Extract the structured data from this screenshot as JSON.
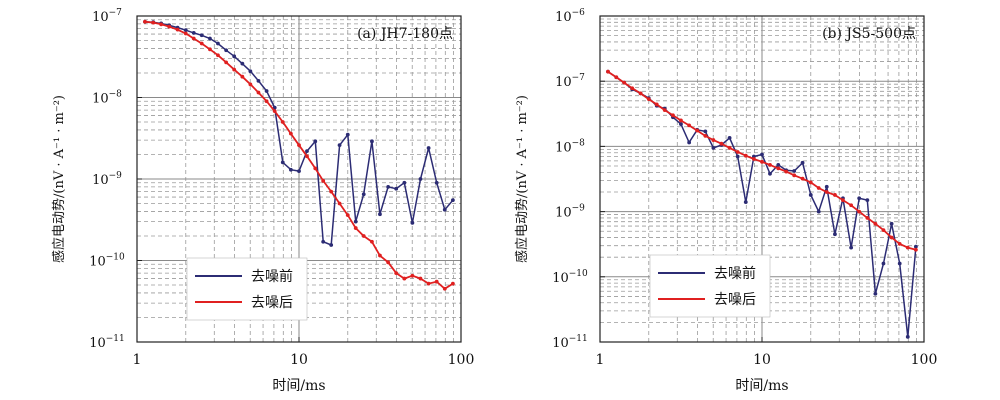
{
  "chart_data": [
    {
      "type": "line",
      "annotation": "(a) JH7-180点",
      "xlabel": "时间/ms",
      "ylabel": "感应电动势/(nV · A⁻¹ · m⁻²)",
      "xscale": "log",
      "yscale": "log",
      "xlim": [
        1,
        100
      ],
      "ylim": [
        1e-11,
        1e-07
      ],
      "x_ticks": [
        {
          "value": 1,
          "label": "1"
        },
        {
          "value": 10,
          "label": "10"
        },
        {
          "value": 100,
          "label": "100"
        }
      ],
      "y_ticks": [
        {
          "value": 1e-11,
          "base": "10",
          "exp": "−11"
        },
        {
          "value": 1e-10,
          "base": "10",
          "exp": "−10"
        },
        {
          "value": 1e-09,
          "base": "10",
          "exp": "−9"
        },
        {
          "value": 1e-08,
          "base": "10",
          "exp": "−8"
        },
        {
          "value": 1e-07,
          "base": "10",
          "exp": "−7"
        }
      ],
      "grid": true,
      "legend_position": "bottom-left",
      "series": [
        {
          "name": "去噪前",
          "color": "#2c2c74",
          "x": [
            1.12,
            1.26,
            1.41,
            1.58,
            1.78,
            2.0,
            2.24,
            2.51,
            2.82,
            3.16,
            3.55,
            3.98,
            4.47,
            5.01,
            5.62,
            6.31,
            7.08,
            7.94,
            8.91,
            10.0,
            11.2,
            12.6,
            14.1,
            15.8,
            17.8,
            20.0,
            22.4,
            25.1,
            28.2,
            31.6,
            35.5,
            39.8,
            44.7,
            50.1,
            56.2,
            63.1,
            70.8,
            79.4,
            89.1
          ],
          "y": [
            8.5e-08,
            8.4e-08,
            8.1e-08,
            7.7e-08,
            7.2e-08,
            6.7e-08,
            6.2e-08,
            5.8e-08,
            5.3e-08,
            4.6e-08,
            3.8e-08,
            3.2e-08,
            2.6e-08,
            2.1e-08,
            1.6e-08,
            1.2e-08,
            7.5e-09,
            1.6e-09,
            1.3e-09,
            1.25e-09,
            2.2e-09,
            2.9e-09,
            1.7e-10,
            1.55e-10,
            2.6e-09,
            3.5e-09,
            3e-10,
            6.5e-10,
            2.9e-09,
            3.7e-10,
            8e-10,
            7.6e-10,
            9e-10,
            2.9e-10,
            1e-09,
            2.4e-09,
            9e-10,
            4.2e-10,
            5.5e-10
          ]
        },
        {
          "name": "去噪后",
          "color": "#e02020",
          "x": [
            1.12,
            1.26,
            1.41,
            1.58,
            1.78,
            2.0,
            2.24,
            2.51,
            2.82,
            3.16,
            3.55,
            3.98,
            4.47,
            5.01,
            5.62,
            6.31,
            7.08,
            7.94,
            8.91,
            10.0,
            11.2,
            12.6,
            14.1,
            15.8,
            17.8,
            20.0,
            22.4,
            25.1,
            28.2,
            31.6,
            35.5,
            39.8,
            44.7,
            50.1,
            56.2,
            63.1,
            70.8,
            79.4,
            89.1
          ],
          "y": [
            8.5e-08,
            8.3e-08,
            7.9e-08,
            7.4e-08,
            6.8e-08,
            6.1e-08,
            5.3e-08,
            4.6e-08,
            3.9e-08,
            3.3e-08,
            2.7e-08,
            2.2e-08,
            1.8e-08,
            1.45e-08,
            1.15e-08,
            9e-09,
            6.8e-09,
            5e-09,
            3.6e-09,
            2.6e-09,
            1.9e-09,
            1.35e-09,
            9.5e-10,
            7e-10,
            5e-10,
            3.6e-10,
            2.5e-10,
            2e-10,
            1.7e-10,
            1.15e-10,
            9.5e-11,
            7e-11,
            6e-11,
            6.5e-11,
            6e-11,
            5.2e-11,
            5.5e-11,
            4.5e-11,
            5.2e-11
          ]
        }
      ]
    },
    {
      "type": "line",
      "annotation": "(b) JS5-500点",
      "xlabel": "时间/ms",
      "ylabel": "感应电动势/(nV · A⁻¹ · m⁻²)",
      "xscale": "log",
      "yscale": "log",
      "xlim": [
        1,
        100
      ],
      "ylim": [
        1e-11,
        1e-06
      ],
      "x_ticks": [
        {
          "value": 1,
          "label": "1"
        },
        {
          "value": 10,
          "label": "10"
        },
        {
          "value": 100,
          "label": "100"
        }
      ],
      "y_ticks": [
        {
          "value": 1e-11,
          "base": "10",
          "exp": "−11"
        },
        {
          "value": 1e-10,
          "base": "10",
          "exp": "−10"
        },
        {
          "value": 1e-09,
          "base": "10",
          "exp": "−9"
        },
        {
          "value": 1e-08,
          "base": "10",
          "exp": "−8"
        },
        {
          "value": 1e-07,
          "base": "10",
          "exp": "−7"
        },
        {
          "value": 1e-06,
          "base": "10",
          "exp": "−6"
        }
      ],
      "grid": true,
      "legend_position": "bottom-left",
      "series": [
        {
          "name": "去噪前",
          "color": "#2c2c74",
          "x": [
            1.12,
            1.26,
            1.41,
            1.58,
            1.78,
            2.0,
            2.24,
            2.51,
            2.82,
            3.16,
            3.55,
            3.98,
            4.47,
            5.01,
            5.62,
            6.31,
            7.08,
            7.94,
            8.91,
            10.0,
            11.2,
            12.6,
            14.1,
            15.8,
            17.8,
            20.0,
            22.4,
            25.1,
            28.2,
            31.6,
            35.5,
            39.8,
            44.7,
            50.1,
            56.2,
            63.1,
            70.8,
            79.4,
            89.1
          ],
          "y": [
            1.4e-07,
            1.15e-07,
            9.5e-08,
            7.5e-08,
            6.5e-08,
            5.5e-08,
            4.2e-08,
            3.8e-08,
            2.8e-08,
            2.2e-08,
            1.15e-08,
            1.8e-08,
            1.7e-08,
            9.5e-09,
            1.05e-08,
            1.35e-08,
            7e-09,
            1.4e-09,
            7e-09,
            7.5e-09,
            3.8e-09,
            5.2e-09,
            4.3e-09,
            4.2e-09,
            5.6e-09,
            1.8e-09,
            1e-09,
            2.4e-09,
            4.5e-10,
            1.6e-09,
            2.8e-10,
            1.6e-09,
            1.5e-09,
            5.5e-11,
            1.6e-10,
            6.5e-10,
            1.6e-10,
            1.2e-11,
            2.9e-10
          ]
        },
        {
          "name": "去噪后",
          "color": "#e02020",
          "x": [
            1.12,
            1.26,
            1.41,
            1.58,
            1.78,
            2.0,
            2.24,
            2.51,
            2.82,
            3.16,
            3.55,
            3.98,
            4.47,
            5.01,
            5.62,
            6.31,
            7.08,
            7.94,
            8.91,
            10.0,
            11.2,
            12.6,
            14.1,
            15.8,
            17.8,
            20.0,
            22.4,
            25.1,
            28.2,
            31.6,
            35.5,
            39.8,
            44.7,
            50.1,
            56.2,
            63.1,
            70.8,
            79.4,
            89.1
          ],
          "y": [
            1.4e-07,
            1.15e-07,
            9.5e-08,
            7.8e-08,
            6.5e-08,
            5.3e-08,
            4.4e-08,
            3.6e-08,
            3e-08,
            2.5e-08,
            2.1e-08,
            1.75e-08,
            1.45e-08,
            1.25e-08,
            1.1e-08,
            9.5e-09,
            8.2e-09,
            7.2e-09,
            6.4e-09,
            5.8e-09,
            5.2e-09,
            4.6e-09,
            4.1e-09,
            3.6e-09,
            3.2e-09,
            2.8e-09,
            2.3e-09,
            2e-09,
            1.8e-09,
            1.5e-09,
            1.25e-09,
            1e-09,
            8e-10,
            6.5e-10,
            5.2e-10,
            4e-10,
            3.2e-10,
            2.8e-10,
            2.6e-10
          ]
        }
      ]
    }
  ]
}
